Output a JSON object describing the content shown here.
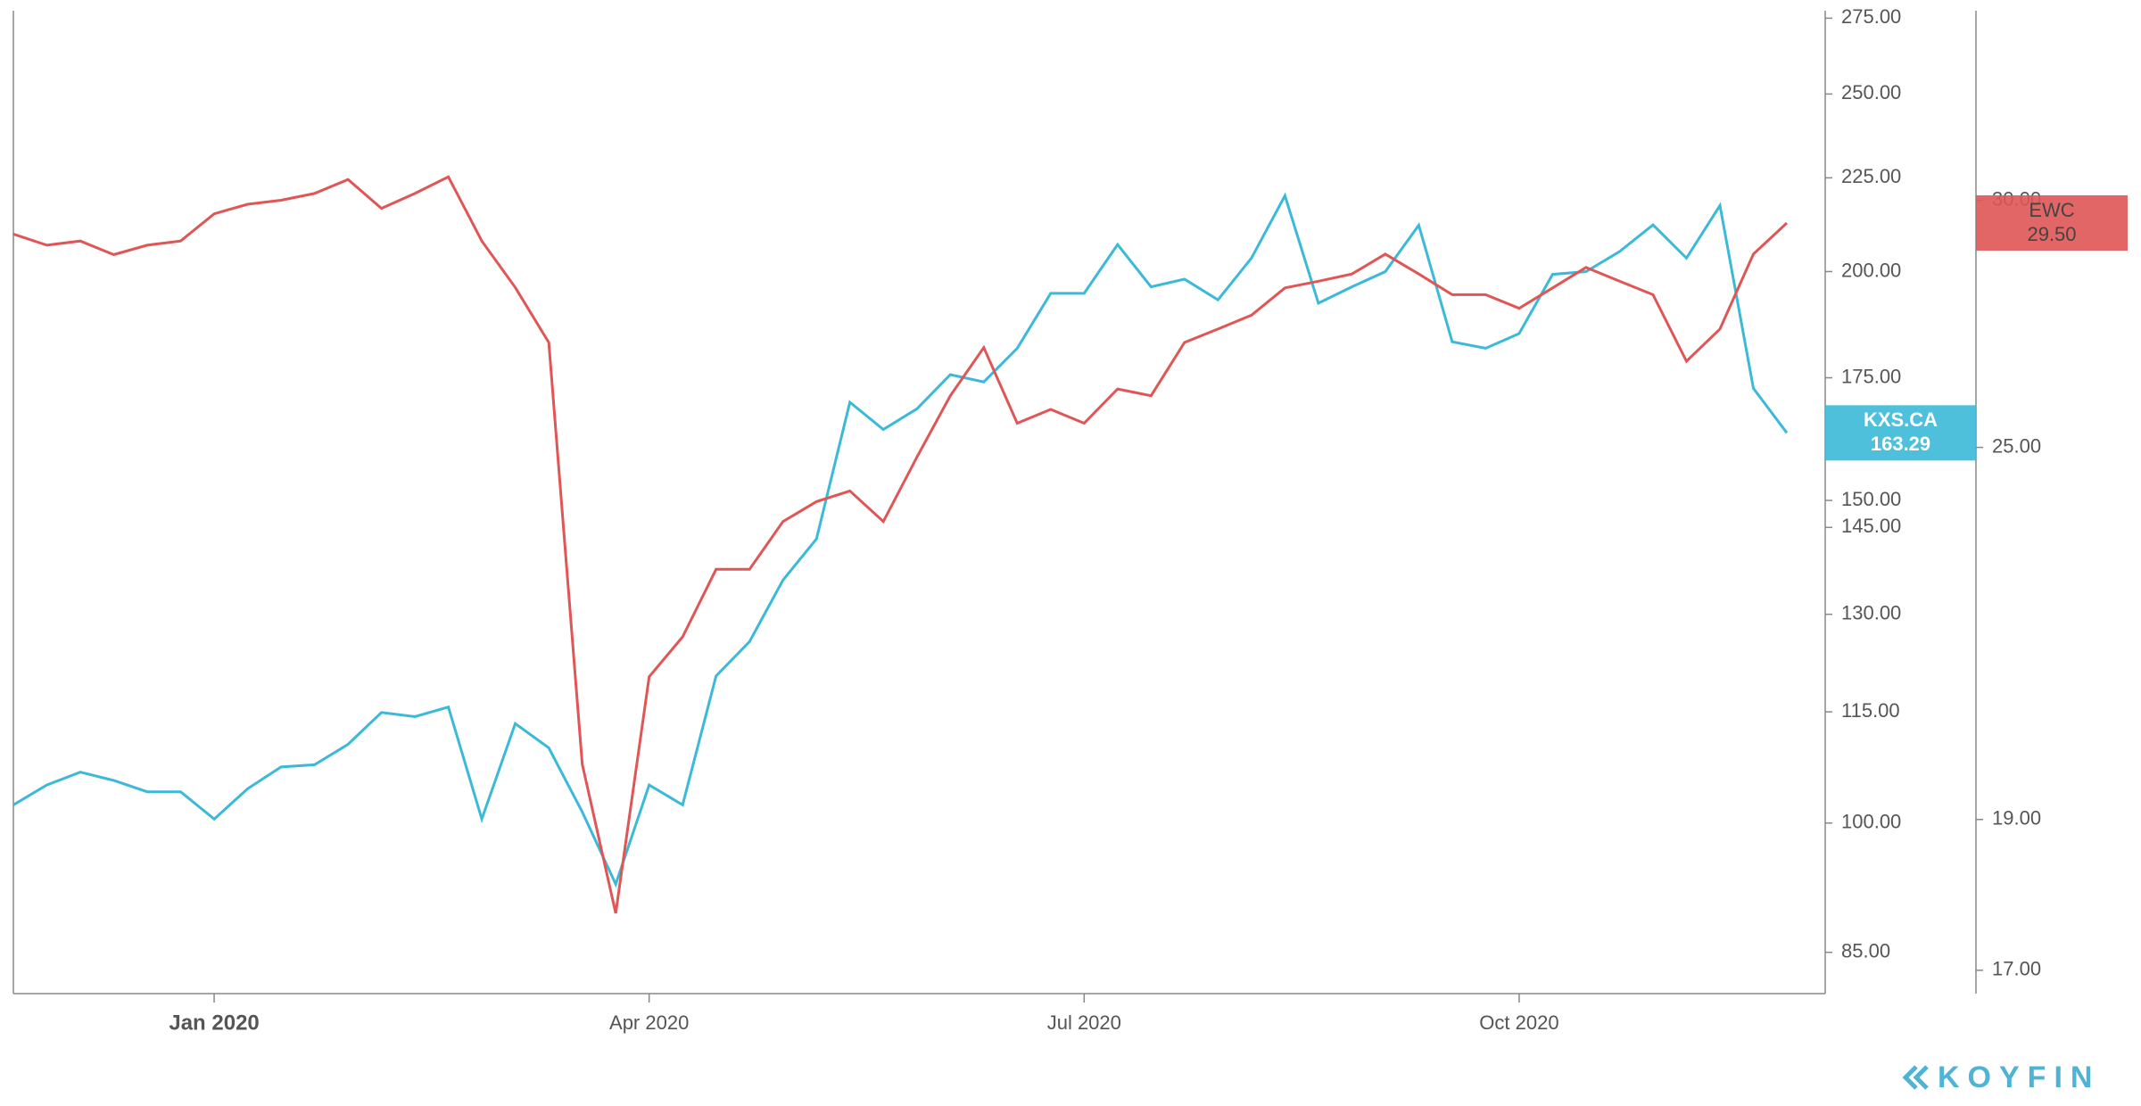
{
  "chart_data": {
    "type": "line",
    "categories": [
      null,
      null,
      null,
      null,
      null,
      null,
      "Jan 2020",
      null,
      null,
      null,
      null,
      null,
      null,
      null,
      null,
      null,
      null,
      null,
      null,
      "Apr 2020",
      null,
      null,
      null,
      null,
      null,
      null,
      null,
      null,
      null,
      null,
      null,
      null,
      "Jul 2020",
      null,
      null,
      null,
      null,
      null,
      null,
      null,
      null,
      null,
      null,
      null,
      null,
      "Oct 2020",
      null,
      null,
      null,
      null,
      null,
      null,
      null,
      null
    ],
    "series": [
      {
        "name": "KXS.CA",
        "color": "#3bb9d8",
        "axis": "y",
        "values": [
          102.3,
          104.9,
          106.6,
          105.5,
          104.0,
          104.0,
          100.5,
          104.4,
          107.3,
          107.6,
          110.4,
          114.9,
          114.3,
          115.7,
          100.5,
          113.3,
          109.9,
          101.4,
          92.6,
          104.9,
          102.3,
          120.3,
          125.6,
          135.7,
          142.9,
          169.7,
          164.0,
          168.3,
          175.7,
          174.1,
          181.6,
          194.6,
          194.6,
          206.9,
          196.2,
          198.1,
          193.0,
          203.4,
          220.0,
          192.2,
          196.2,
          200.0,
          212.0,
          183.1,
          181.6,
          185.0,
          199.3,
          200.0,
          205.1,
          212.1,
          203.4,
          217.3,
          172.7,
          163.29
        ]
      },
      {
        "name": "EWC",
        "color": "#e05555",
        "axis": "y2",
        "values": [
          29.26,
          29.02,
          29.11,
          28.82,
          29.02,
          29.11,
          29.7,
          29.91,
          30.0,
          30.15,
          30.46,
          29.82,
          30.15,
          30.52,
          29.11,
          28.13,
          27.01,
          19.79,
          17.73,
          21.11,
          21.74,
          22.85,
          22.85,
          23.67,
          24.02,
          24.21,
          23.67,
          24.82,
          25.97,
          26.91,
          25.45,
          25.71,
          25.45,
          26.1,
          25.97,
          27.01,
          27.28,
          27.56,
          28.12,
          28.26,
          28.41,
          28.83,
          28.41,
          27.98,
          27.98,
          27.7,
          28.12,
          28.55,
          28.26,
          27.98,
          26.64,
          27.28,
          28.83,
          29.5
        ],
        "value_labels": [
          null,
          null,
          null,
          null,
          null,
          null,
          null,
          null,
          null,
          null,
          null,
          null,
          null,
          null,
          null,
          null,
          null,
          null,
          null,
          null,
          null,
          null,
          null,
          null,
          null,
          null,
          null,
          null,
          null,
          null,
          null,
          null,
          null,
          null,
          null,
          null,
          null,
          null,
          null,
          null,
          null,
          null,
          null,
          null,
          null,
          null,
          null,
          null,
          null,
          null,
          null,
          null,
          null,
          "29.50"
        ]
      }
    ],
    "ylim": [
      80.7,
      277.6
    ],
    "ylog": true,
    "yticks": [
      {
        "value": 85,
        "label": "85.00"
      },
      {
        "value": 100,
        "label": "100.00"
      },
      {
        "value": 115,
        "label": "115.00"
      },
      {
        "value": 130,
        "label": "130.00"
      },
      {
        "value": 145,
        "label": "145.00"
      },
      {
        "value": 150,
        "label": "150.00"
      },
      {
        "value": 175,
        "label": "175.00"
      },
      {
        "value": 200,
        "label": "200.00"
      },
      {
        "value": 225,
        "label": "225.00"
      },
      {
        "value": 250,
        "label": "250.00"
      },
      {
        "value": 275,
        "label": "275.00"
      }
    ],
    "y2lim": [
      16.71,
      34.5
    ],
    "y2log": true,
    "y2ticks": [
      {
        "value": 17,
        "label": "17.00"
      },
      {
        "value": 19,
        "label": "19.00"
      },
      {
        "value": 25,
        "label": "25.00"
      },
      {
        "value": 30,
        "label": "30.00"
      }
    ],
    "grid": false,
    "watermark": "KOYFIN"
  }
}
